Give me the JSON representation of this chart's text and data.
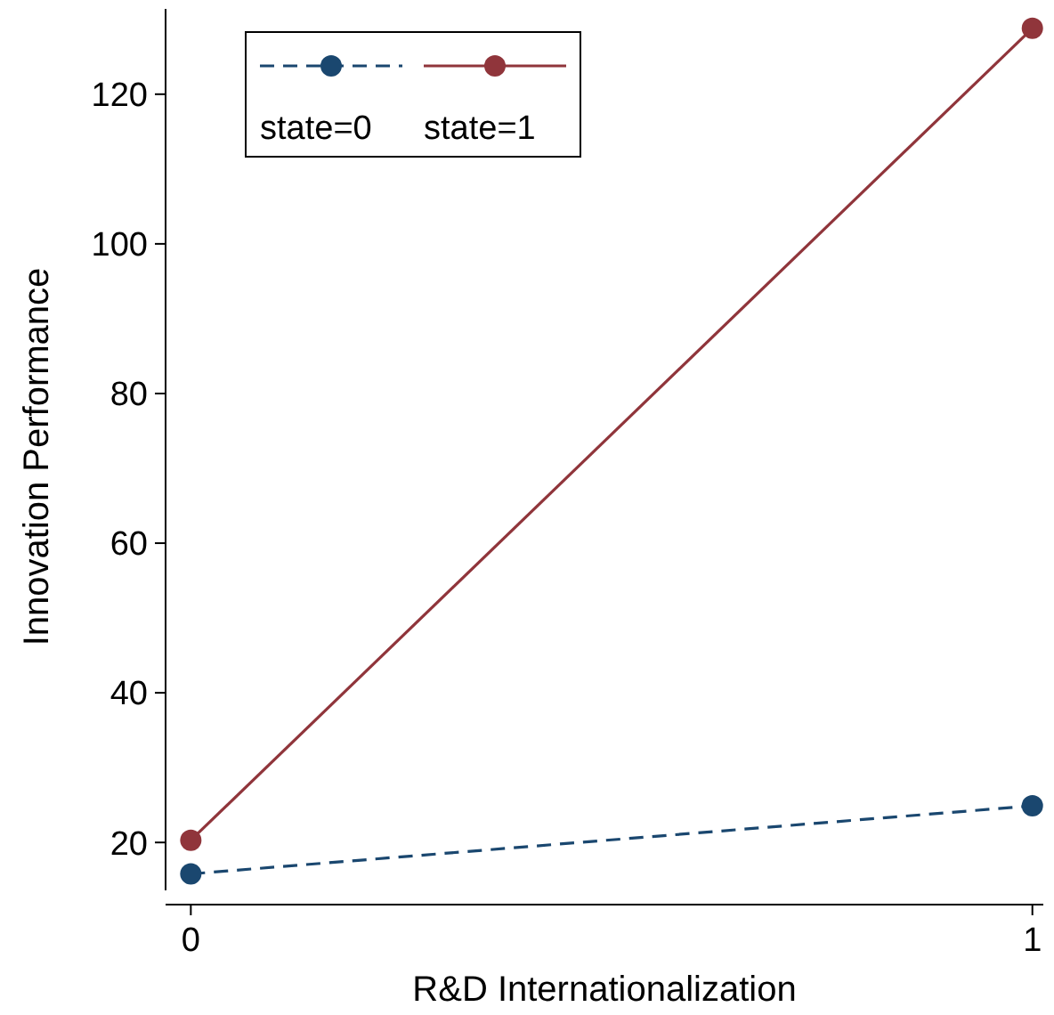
{
  "chart_data": {
    "type": "line",
    "xlabel": "R&D Internationalization",
    "ylabel": "Innovation Performance",
    "x": [
      0,
      1
    ],
    "xlim": [
      -0.03,
      1.013
    ],
    "xticks": [
      0,
      1
    ],
    "ylim": [
      13.6,
      131.4
    ],
    "yticks": [
      20,
      40,
      60,
      80,
      100,
      120
    ],
    "grid": false,
    "legend": "top left",
    "marker": "circle",
    "series": [
      {
        "name": "state=0",
        "color": "#1a476f",
        "values": [
          15.8,
          24.9
        ],
        "line_style": "dashed"
      },
      {
        "name": "state=1",
        "color": "#90353b",
        "values": [
          20.3,
          128.8
        ],
        "line_style": "solid"
      }
    ]
  }
}
